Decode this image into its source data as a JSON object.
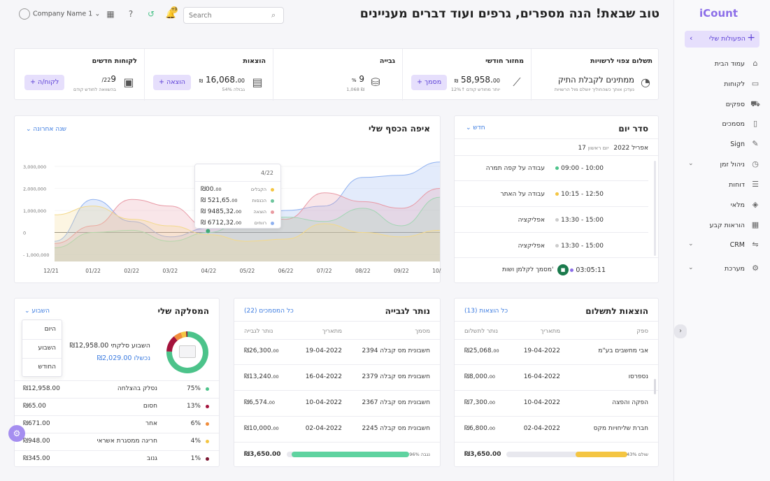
{
  "header": {
    "title": "טוב שבאת! הנה מספרים, גרפים ועוד דברים מעניינים",
    "company": "Company Name 1",
    "notif_count": "+9",
    "search_placeholder": "Search"
  },
  "sidebar": {
    "logo": "iCount",
    "actions_label": "הפעולות שלי",
    "items": [
      {
        "label": "עמוד הבית",
        "icon": "home-icon",
        "expand": false
      },
      {
        "label": "לקוחות",
        "icon": "contacts-icon",
        "expand": false
      },
      {
        "label": "ספקים",
        "icon": "truck-icon",
        "expand": false
      },
      {
        "label": "מסמכים",
        "icon": "document-icon",
        "expand": false
      },
      {
        "label": "Sign",
        "icon": "pen-icon",
        "expand": false
      },
      {
        "label": "ניהול זמן",
        "icon": "clock-icon",
        "expand": true
      },
      {
        "label": "דוחות",
        "icon": "report-icon",
        "expand": false
      },
      {
        "label": "מלאי",
        "icon": "inventory-icon",
        "expand": false
      },
      {
        "label": "הוראות קבע",
        "icon": "calendar-icon",
        "expand": false
      },
      {
        "label": "CRM",
        "icon": "handshake-icon",
        "expand": true
      },
      {
        "label": "מערכת",
        "icon": "gear-icon",
        "expand": true
      }
    ]
  },
  "stats": [
    {
      "title": "תשלום צפוי לרשויות",
      "value": "ממתינים לקבלת התיק",
      "sub": "נעדכן אותך כשהחוליך יושלם מול הרשויות"
    },
    {
      "title": "מחזור חודשי",
      "value": "58,958.",
      "value_dec": "00",
      "currency": "₪",
      "sub": "12%↑ יותר מחודש קודם",
      "button": "+ מסמך"
    },
    {
      "title": "גבייה",
      "value": "9",
      "unit": "%",
      "sub": "1,068 ₪"
    },
    {
      "title": "הוצאות",
      "value": "16,068.",
      "value_dec": "00",
      "currency": "₪",
      "sub": "54% גבולה",
      "button": "+ הוצאה"
    },
    {
      "title": "לקוחות חדשים",
      "value": "9",
      "total": "/22",
      "sub": "בהשוואה לחודש קודם",
      "button": "+ לקוח/ה"
    }
  ],
  "agenda": {
    "title": "סדר יום",
    "filter": "חדש",
    "date": "17 אפריל 2022",
    "weekday": "יום ראשון",
    "items": [
      {
        "time": "09:00 - 10:00",
        "text": "עבודה על קפה תמרה",
        "color": "#4cc38a"
      },
      {
        "time": "10:15 - 12:50",
        "text": "עבודה על האתר",
        "color": "#f4c542"
      },
      {
        "time": "13:30 - 15:00",
        "text": "אפליקציה",
        "color": "#cccccc"
      },
      {
        "time": "13:30 - 15:00",
        "text": "אפליקציה",
        "color": "#cccccc"
      }
    ],
    "timer": {
      "time": "03:05:11",
      "text": "מסמך לקלמן ושות'"
    }
  },
  "chart_data": {
    "type": "area",
    "title": "איפה הכסף שלי",
    "filter": "שנה אחרונה",
    "categories": [
      "12/21",
      "01/22",
      "02/22",
      "03/22",
      "04/22",
      "05/22",
      "06/22",
      "07/22",
      "08/22",
      "09/22",
      "10/22"
    ],
    "yticks": [
      "3,000,000",
      "2,000,000",
      "1,000,000",
      "0",
      "- 1,000,000"
    ],
    "ylim": [
      -1000000,
      3000000
    ],
    "series": [
      {
        "color": "#8fb1f0",
        "values": [
          -400000,
          1500000,
          500000,
          -200000,
          200000,
          400000,
          1000000,
          1200000,
          2500000,
          2600000,
          3200000
        ]
      },
      {
        "color": "#e89aa6",
        "values": [
          -500000,
          300000,
          1500000,
          1200000,
          200000,
          900000,
          600000,
          1800000,
          1400000,
          1100000,
          2000000
        ]
      },
      {
        "color": "#a2d6b4",
        "values": [
          -700000,
          0,
          100000,
          -400000,
          0,
          600000,
          700000,
          500000,
          1100000,
          300000,
          1600000
        ]
      },
      {
        "color": "#f3d98b",
        "values": [
          800000,
          1200000,
          600000,
          300000,
          -100000,
          -400000,
          -300000,
          400000,
          0,
          -200000,
          100000
        ]
      }
    ],
    "tooltip": {
      "date": "4/22",
      "rows": [
        {
          "label": "הקבלים",
          "value": "₪00.",
          "dec": "00",
          "color": "#f4c542"
        },
        {
          "label": "הכנסות",
          "value": "₪ 521,65.",
          "dec": "00",
          "color": "#6cc59c"
        },
        {
          "label": "הוצאה",
          "value": "₪ 9485,32.",
          "dec": "00",
          "color": "#e99aa0"
        },
        {
          "label": "רווחים",
          "value": "₪ 6712,32.",
          "dec": "00",
          "color": "#8fb1f0"
        }
      ]
    }
  },
  "expenses": {
    "title": "הוצאות לתשלום",
    "link": "כל הוצאות (13)",
    "headers": [
      "ספק",
      "מתאריך",
      "נותר לתשלום"
    ],
    "rows": [
      {
        "name": "אבי מחשבים בע\"מ",
        "date": "19-04-2022",
        "amount": "₪25,068.",
        "dec": "00"
      },
      {
        "name": "נספרסו",
        "date": "16-04-2022",
        "amount": "₪8,000.",
        "dec": "00"
      },
      {
        "name": "הפקה והפצה",
        "date": "10-04-2022",
        "amount": "₪7,300.",
        "dec": "00"
      },
      {
        "name": "חברת שליחויות מקס",
        "date": "02-04-2022",
        "amount": "₪6,800.",
        "dec": "00"
      }
    ],
    "footer": {
      "amount": "₪3,650.00",
      "pct": "43% שולם",
      "progress": 0.43
    }
  },
  "collect": {
    "title": "נותר לגבייה",
    "link": "כל המסמכים (22)",
    "headers": [
      "מסמך",
      "מתאריך",
      "נותר לגבייה"
    ],
    "rows": [
      {
        "name": "חשבונית מס קבלה 2394",
        "date": "19-04-2022",
        "amount": "₪26,300.",
        "dec": "00"
      },
      {
        "name": "חשבונית מס קבלה 2379",
        "date": "16-04-2022",
        "amount": "₪13,240.",
        "dec": "00"
      },
      {
        "name": "חשבונית מס קבלה 2367",
        "date": "10-04-2022",
        "amount": "₪6,574.",
        "dec": "00"
      },
      {
        "name": "חשבונית מס קבלה 2245",
        "date": "02-04-2022",
        "amount": "₪10,000.",
        "dec": "00"
      }
    ],
    "footer": {
      "amount": "₪3,650.00",
      "pct": "96% נגבה",
      "progress": 0.96
    }
  },
  "clearing": {
    "title": "המסלקה שלי",
    "filter": "השבוע",
    "dropdown": [
      "היום",
      "השבוע",
      "החודש"
    ],
    "week_total": "השבוע סלקתי ₪12,958.00",
    "failed": "₪2,029.00 נכשלו",
    "rows": [
      {
        "pct": "75%",
        "label": "נסלק בהצלחה",
        "amount": "₪12,958.00",
        "color": "#4cc38a"
      },
      {
        "pct": "13%",
        "label": "חסום",
        "amount": "₪65.00",
        "color": "#a4133c"
      },
      {
        "pct": "6%",
        "label": "אחר",
        "amount": "₪671.00",
        "color": "#f08c3a"
      },
      {
        "pct": "4%",
        "label": "חריגה ממסגרת אשראי",
        "amount": "₪948.00",
        "color": "#f4c542"
      },
      {
        "pct": "1%",
        "label": "גנוב",
        "amount": "₪345.00",
        "color": "#7a1530"
      }
    ]
  }
}
